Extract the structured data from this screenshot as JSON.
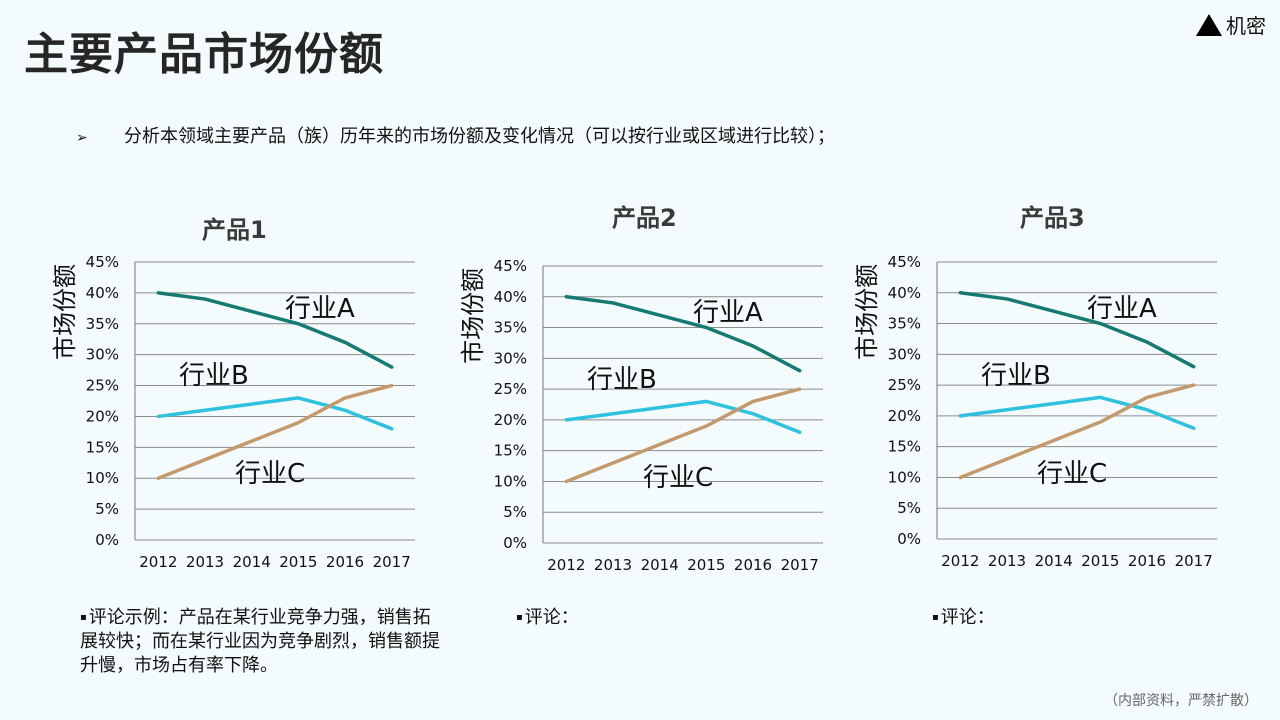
{
  "page": {
    "title": "主要产品市场份额",
    "confidential": "机密",
    "intro": "分析本领域主要产品（族）历年来的市场份额及变化情况（可以按行业或区域进行比较）；",
    "intro_marker": "➢",
    "footer": "（内部资料，严禁扩散）"
  },
  "comments": [
    {
      "marker": "▪",
      "text": "评论示例：产品在某行业竞争力强，销售拓展较快；而在某行业因为竞争剧烈，销售额提升慢，市场占有率下降。"
    },
    {
      "marker": "▪",
      "text": "评论："
    },
    {
      "marker": "▪",
      "text": "评论："
    }
  ],
  "colors": {
    "A": "#157a72",
    "B": "#2ec2e0",
    "C": "#c49a6c",
    "grid": "#8c8c8c",
    "axis": "#777777"
  },
  "chart_data": [
    {
      "type": "line",
      "title": "产品1",
      "ylabel": "市场份额",
      "xlabel": "",
      "x": [
        "2012",
        "2013",
        "2014",
        "2015",
        "2016",
        "2017"
      ],
      "ylim": [
        0,
        45
      ],
      "yticks": [
        "0%",
        "5%",
        "10%",
        "15%",
        "20%",
        "25%",
        "30%",
        "35%",
        "40%",
        "45%"
      ],
      "grid": true,
      "series": [
        {
          "name": "行业A",
          "values": [
            40,
            39,
            37,
            35,
            32,
            28
          ]
        },
        {
          "name": "行业B",
          "values": [
            20,
            21,
            22,
            23,
            21,
            18
          ]
        },
        {
          "name": "行业C",
          "values": [
            10,
            13,
            16,
            19,
            23,
            25
          ]
        }
      ]
    },
    {
      "type": "line",
      "title": "产品2",
      "ylabel": "市场份额",
      "xlabel": "",
      "x": [
        "2012",
        "2013",
        "2014",
        "2015",
        "2016",
        "2017"
      ],
      "ylim": [
        0,
        45
      ],
      "yticks": [
        "0%",
        "5%",
        "10%",
        "15%",
        "20%",
        "25%",
        "30%",
        "35%",
        "40%",
        "45%"
      ],
      "grid": true,
      "series": [
        {
          "name": "行业A",
          "values": [
            40,
            39,
            37,
            35,
            32,
            28
          ]
        },
        {
          "name": "行业B",
          "values": [
            20,
            21,
            22,
            23,
            21,
            18
          ]
        },
        {
          "name": "行业C",
          "values": [
            10,
            13,
            16,
            19,
            23,
            25
          ]
        }
      ]
    },
    {
      "type": "line",
      "title": "产品3",
      "ylabel": "市场份额",
      "xlabel": "",
      "x": [
        "2012",
        "2013",
        "2014",
        "2015",
        "2016",
        "2017"
      ],
      "ylim": [
        0,
        45
      ],
      "yticks": [
        "0%",
        "5%",
        "10%",
        "15%",
        "20%",
        "25%",
        "30%",
        "35%",
        "40%",
        "45%"
      ],
      "grid": true,
      "series": [
        {
          "name": "行业A",
          "values": [
            40,
            39,
            37,
            35,
            32,
            28
          ]
        },
        {
          "name": "行业B",
          "values": [
            20,
            21,
            22,
            23,
            21,
            18
          ]
        },
        {
          "name": "行业C",
          "values": [
            10,
            13,
            16,
            19,
            23,
            25
          ]
        }
      ]
    }
  ]
}
